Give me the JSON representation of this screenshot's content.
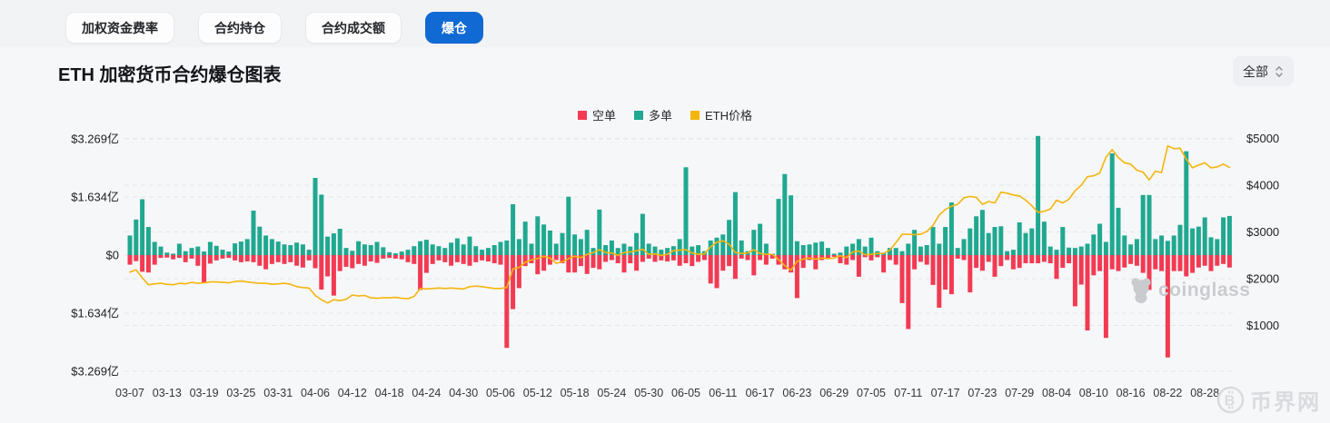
{
  "tabs": [
    {
      "label": "加权资金费率",
      "active": false
    },
    {
      "label": "合约持仓",
      "active": false
    },
    {
      "label": "合约成交额",
      "active": false
    },
    {
      "label": "爆仓",
      "active": true
    }
  ],
  "title": "ETH 加密货币合约爆仓图表",
  "dropdown": {
    "label": "全部"
  },
  "legend": {
    "items": [
      {
        "label": "空单",
        "color": "#f23a52"
      },
      {
        "label": "多单",
        "color": "#20a890"
      },
      {
        "label": "ETH价格",
        "color": "#f5b50d"
      }
    ]
  },
  "watermark": {
    "text": "coinglass"
  },
  "footer_logo": {
    "text": "币界网"
  },
  "chart_data": {
    "type": "bar+line",
    "description": "Daily ETH contract liquidations: long (多单, teal, up) and short (空单, red, down) in 亿 USD on left axis, ETH price (yellow line) on right axis",
    "start_date": "03-07",
    "x_ticks": [
      "03-07",
      "03-13",
      "03-19",
      "03-25",
      "03-31",
      "04-06",
      "04-12",
      "04-18",
      "04-24",
      "04-30",
      "05-06",
      "05-12",
      "05-18",
      "05-24",
      "05-30",
      "06-05",
      "06-11",
      "06-17",
      "06-23",
      "06-29",
      "07-05",
      "07-11",
      "07-17",
      "07-23",
      "07-29",
      "08-04",
      "08-10",
      "08-16",
      "08-22",
      "08-28"
    ],
    "x_tick_step_days": 6,
    "left_axis": {
      "unit": "亿",
      "ticks": [
        {
          "label": "$3.269亿",
          "value": 3.269
        },
        {
          "label": "$1.634亿",
          "value": 1.634
        },
        {
          "label": "$0",
          "value": 0
        },
        {
          "label": "$1.634亿",
          "value": -1.634
        },
        {
          "label": "$3.269亿",
          "value": -3.269
        }
      ]
    },
    "right_axis": {
      "unit": "USD",
      "ticks": [
        {
          "label": "$5000",
          "value": 5000
        },
        {
          "label": "$4000",
          "value": 4000
        },
        {
          "label": "$3000",
          "value": 3000
        },
        {
          "label": "$2000",
          "value": 2000
        },
        {
          "label": "$1000",
          "value": 1000
        }
      ],
      "range": [
        0,
        5000
      ]
    },
    "colors": {
      "short": "#f23a52",
      "long": "#20a890",
      "price": "#f5b50d",
      "grid": "#e4e5e8"
    },
    "series": {
      "long_liquidations_yi": [
        0.55,
        1.0,
        1.57,
        0.79,
        0.37,
        0.24,
        0.07,
        0.04,
        0.32,
        0.11,
        0.2,
        0.24,
        0.1,
        0.37,
        0.26,
        0.15,
        0.1,
        0.33,
        0.38,
        0.45,
        1.25,
        0.8,
        0.55,
        0.45,
        0.38,
        0.3,
        0.28,
        0.35,
        0.3,
        0.15,
        2.17,
        1.7,
        0.52,
        0.61,
        0.74,
        0.2,
        0.12,
        0.39,
        0.3,
        0.28,
        0.37,
        0.22,
        0.08,
        0.05,
        0.1,
        0.15,
        0.25,
        0.39,
        0.43,
        0.3,
        0.25,
        0.2,
        0.35,
        0.47,
        0.3,
        0.52,
        0.25,
        0.15,
        0.2,
        0.28,
        0.37,
        0.41,
        1.43,
        0.45,
        0.94,
        0.32,
        1.09,
        0.86,
        0.69,
        0.32,
        0.62,
        1.64,
        0.58,
        0.45,
        0.71,
        0.2,
        1.28,
        0.28,
        0.41,
        0.2,
        0.32,
        0.24,
        0.62,
        1.16,
        0.32,
        0.24,
        0.15,
        0.2,
        0.25,
        0.45,
        2.47,
        0.24,
        0.28,
        0.11,
        0.41,
        0.49,
        0.58,
        0.99,
        1.77,
        0.41,
        0.11,
        0.71,
        0.88,
        0.32,
        0.03,
        1.58,
        2.28,
        1.68,
        0.39,
        0.28,
        0.3,
        0.35,
        0.38,
        0.2,
        0.03,
        0.07,
        0.24,
        0.32,
        0.45,
        0.24,
        0.49,
        0.11,
        0.07,
        0.2,
        0.2,
        0.11,
        0.32,
        0.71,
        0.24,
        0.28,
        0.79,
        0.32,
        0.79,
        1.48,
        0.2,
        0.45,
        0.75,
        1.09,
        1.27,
        0.62,
        0.79,
        0.81,
        0.11,
        0.15,
        0.92,
        0.62,
        0.75,
        3.35,
        0.94,
        0.24,
        0.15,
        0.79,
        0.21,
        0.2,
        0.24,
        0.32,
        0.58,
        0.88,
        0.37,
        2.86,
        1.33,
        0.55,
        0.3,
        0.45,
        1.69,
        1.69,
        0.45,
        0.55,
        0.4,
        0.55,
        0.85,
        2.92,
        0.75,
        0.8,
        1.06,
        0.5,
        0.45,
        1.06,
        1.1
      ],
      "short_liquidations_yi": [
        0.27,
        0.17,
        0.47,
        0.49,
        0.27,
        0.08,
        0.07,
        0.12,
        0.08,
        0.2,
        0.1,
        0.3,
        0.79,
        0.24,
        0.15,
        0.1,
        0.08,
        0.15,
        0.2,
        0.18,
        0.2,
        0.3,
        0.4,
        0.25,
        0.2,
        0.25,
        0.2,
        0.3,
        0.35,
        0.15,
        0.37,
        0.97,
        0.6,
        1.14,
        0.45,
        0.33,
        0.37,
        0.25,
        0.3,
        0.18,
        0.22,
        0.1,
        0.08,
        0.1,
        0.12,
        0.2,
        0.25,
        0.98,
        0.5,
        0.25,
        0.15,
        0.2,
        0.3,
        0.2,
        0.25,
        0.3,
        0.2,
        0.15,
        0.18,
        0.23,
        0.27,
        2.61,
        1.52,
        0.93,
        0.31,
        0.23,
        0.54,
        0.44,
        0.27,
        0.14,
        0.23,
        0.49,
        0.49,
        0.31,
        0.53,
        0.36,
        0.4,
        0.19,
        0.14,
        0.23,
        0.49,
        0.23,
        0.44,
        0.19,
        0.1,
        0.19,
        0.15,
        0.18,
        0.15,
        0.3,
        0.23,
        0.31,
        0.19,
        0.14,
        0.8,
        0.93,
        0.44,
        0.31,
        0.67,
        0.1,
        0.14,
        0.57,
        0.14,
        0.27,
        0.1,
        0.27,
        0.4,
        0.49,
        1.21,
        0.36,
        0.14,
        0.4,
        0.14,
        0.1,
        0.05,
        0.23,
        0.27,
        0.14,
        0.61,
        0.06,
        0.15,
        0.06,
        0.49,
        0.14,
        0.27,
        1.35,
        2.08,
        0.4,
        0.19,
        0.27,
        0.84,
        1.48,
        0.97,
        1.1,
        0.1,
        0.14,
        1.05,
        0.36,
        0.44,
        0.19,
        0.61,
        0.31,
        0.14,
        0.4,
        0.36,
        0.23,
        0.23,
        0.23,
        0.19,
        0.23,
        0.67,
        0.36,
        0.23,
        1.44,
        0.83,
        2.12,
        0.57,
        0.45,
        2.33,
        0.4,
        0.45,
        0.35,
        0.25,
        0.3,
        0.5,
        0.98,
        0.4,
        0.45,
        2.88,
        0.45,
        0.45,
        0.6,
        0.5,
        0.35,
        0.3,
        0.45,
        0.3,
        0.25,
        0.35
      ],
      "eth_price_usd": [
        2140,
        2190,
        2020,
        1870,
        1890,
        1900,
        1880,
        1870,
        1900,
        1890,
        1920,
        1900,
        1910,
        1930,
        1930,
        1920,
        1910,
        1940,
        1950,
        1930,
        1915,
        1900,
        1900,
        1880,
        1890,
        1900,
        1880,
        1830,
        1810,
        1800,
        1640,
        1550,
        1480,
        1550,
        1530,
        1560,
        1650,
        1630,
        1640,
        1590,
        1580,
        1590,
        1590,
        1600,
        1580,
        1570,
        1620,
        1790,
        1780,
        1790,
        1800,
        1790,
        1800,
        1790,
        1780,
        1830,
        1840,
        1830,
        1810,
        1790,
        1790,
        1810,
        2210,
        2240,
        2350,
        2400,
        2430,
        2480,
        2440,
        2330,
        2360,
        2430,
        2480,
        2450,
        2520,
        2560,
        2620,
        2560,
        2550,
        2500,
        2560,
        2570,
        2600,
        2630,
        2520,
        2530,
        2500,
        2520,
        2600,
        2610,
        2620,
        2550,
        2520,
        2530,
        2680,
        2780,
        2810,
        2740,
        2560,
        2540,
        2550,
        2620,
        2540,
        2520,
        2520,
        2410,
        2280,
        2180,
        2370,
        2420,
        2440,
        2420,
        2440,
        2430,
        2440,
        2490,
        2450,
        2570,
        2590,
        2510,
        2520,
        2540,
        2540,
        2610,
        2770,
        2950,
        2950,
        2940,
        2950,
        3010,
        3140,
        3360,
        3480,
        3550,
        3590,
        3730,
        3760,
        3740,
        3590,
        3650,
        3620,
        3850,
        3830,
        3790,
        3770,
        3680,
        3560,
        3420,
        3440,
        3490,
        3680,
        3620,
        3700,
        3880,
        4000,
        4180,
        4200,
        4260,
        4600,
        4760,
        4590,
        4480,
        4450,
        4320,
        4280,
        4110,
        4300,
        4270,
        4840,
        4780,
        4790,
        4560,
        4370,
        4430,
        4480,
        4370,
        4390,
        4450,
        4380
      ]
    }
  }
}
